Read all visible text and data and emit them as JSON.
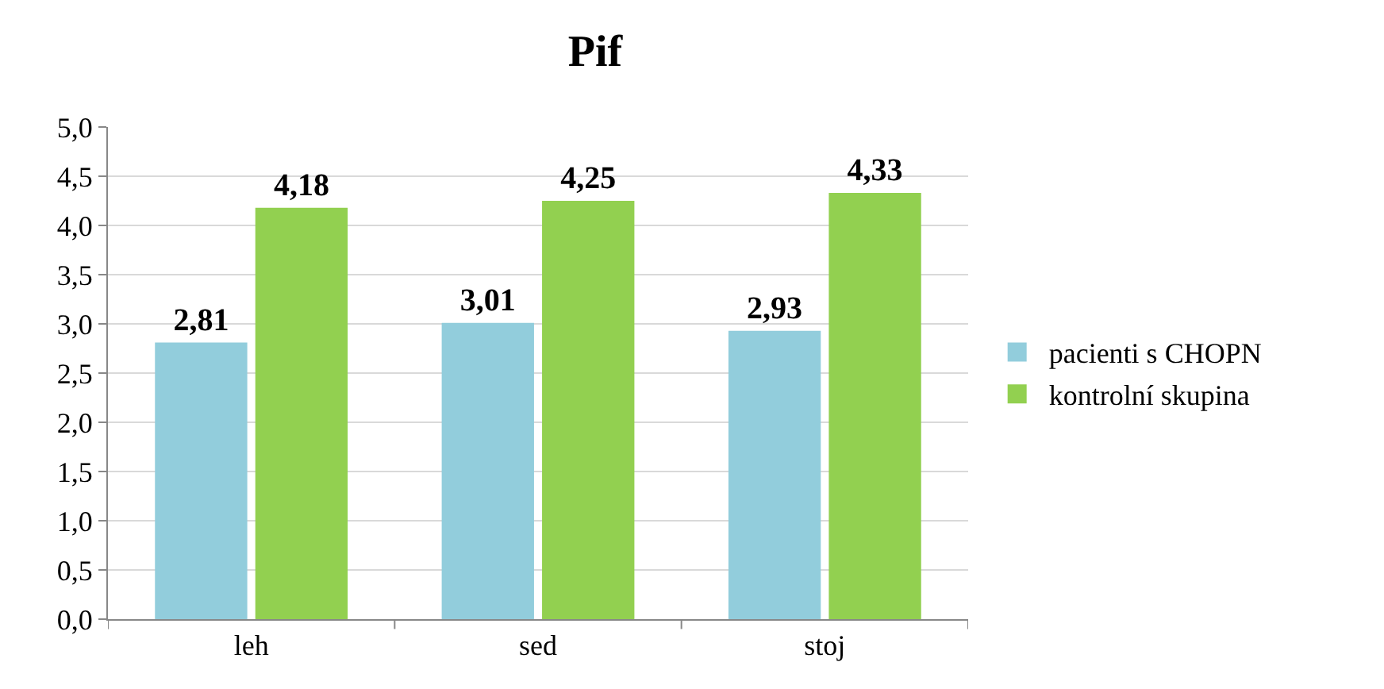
{
  "chart_data": {
    "type": "bar",
    "title": "Pif",
    "categories": [
      "leh",
      "sed",
      "stoj"
    ],
    "series": [
      {
        "name": "pacienti s CHOPN",
        "color": "#92cddc",
        "values": [
          2.81,
          3.01,
          2.93
        ],
        "value_labels": [
          "2,81",
          "3,01",
          "2,93"
        ]
      },
      {
        "name": "kontrolní skupina",
        "color": "#92d050",
        "values": [
          4.18,
          4.25,
          4.33
        ],
        "value_labels": [
          "4,18",
          "4,25",
          "4,33"
        ]
      }
    ],
    "ylim": [
      0,
      5
    ],
    "yticks": [
      {
        "value": 0,
        "label": "0,0"
      },
      {
        "value": 0.5,
        "label": "0,5"
      },
      {
        "value": 1,
        "label": "1,0"
      },
      {
        "value": 1.5,
        "label": "1,5"
      },
      {
        "value": 2,
        "label": "2,0"
      },
      {
        "value": 2.5,
        "label": "2,5"
      },
      {
        "value": 3,
        "label": "3,0"
      },
      {
        "value": 3.5,
        "label": "3,5"
      },
      {
        "value": 4,
        "label": "4,0"
      },
      {
        "value": 4.5,
        "label": "4,5"
      },
      {
        "value": 5,
        "label": "5,0"
      }
    ],
    "grid": "y",
    "legend": "right"
  }
}
